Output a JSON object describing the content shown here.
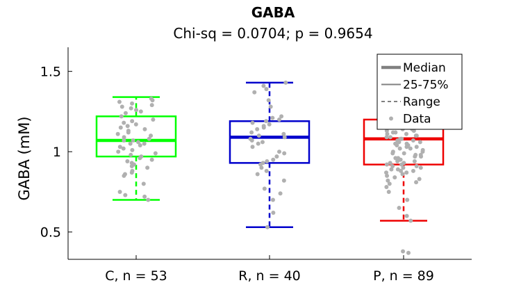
{
  "chart_data": {
    "type": "box",
    "title": "GABA",
    "subtitle": "Chi-sq = 0.0704; p = 0.9654",
    "xlabel": "",
    "ylabel": "GABA (mM)",
    "ylim": [
      0.33,
      1.65
    ],
    "yticks": [
      0.5,
      1,
      1.5
    ],
    "ytick_labels": [
      "0.5",
      "1",
      "1.5"
    ],
    "categories": [
      "C, n = 53",
      "R, n = 40",
      "P, n = 89"
    ],
    "groups": [
      {
        "label": "C, n = 53",
        "color": "#00ff00",
        "min": 0.7,
        "q1": 0.97,
        "median": 1.07,
        "q3": 1.22,
        "max": 1.34,
        "points": [
          1.33,
          1.32,
          1.31,
          1.3,
          1.29,
          1.28,
          1.27,
          1.26,
          1.25,
          1.24,
          1.22,
          1.2,
          1.19,
          1.18,
          1.17,
          1.16,
          1.15,
          1.14,
          1.13,
          1.12,
          1.11,
          1.1,
          1.09,
          1.08,
          1.07,
          1.07,
          1.06,
          1.05,
          1.05,
          1.04,
          1.03,
          1.02,
          1.01,
          1.0,
          0.99,
          0.98,
          0.97,
          0.96,
          0.95,
          0.94,
          0.93,
          0.92,
          0.91,
          0.9,
          0.88,
          0.87,
          0.86,
          0.85,
          0.8,
          0.75,
          0.73,
          0.72,
          0.7
        ]
      },
      {
        "label": "R, n = 40",
        "color": "#0000cc",
        "min": 0.53,
        "q1": 0.93,
        "median": 1.09,
        "q3": 1.19,
        "max": 1.43,
        "points": [
          1.43,
          1.41,
          1.39,
          1.37,
          1.32,
          1.28,
          1.22,
          1.21,
          1.2,
          1.19,
          1.18,
          1.17,
          1.16,
          1.15,
          1.14,
          1.12,
          1.11,
          1.1,
          1.09,
          1.08,
          1.07,
          1.06,
          1.05,
          1.03,
          1.0,
          0.99,
          0.97,
          0.95,
          0.94,
          0.93,
          0.92,
          0.9,
          0.88,
          0.86,
          0.82,
          0.77,
          0.74,
          0.7,
          0.62,
          0.53
        ]
      },
      {
        "label": "P, n = 89",
        "color": "#ee0000",
        "min": 0.57,
        "q1": 0.92,
        "median": 1.08,
        "q3": 1.2,
        "max": 1.58,
        "points": [
          1.58,
          1.55,
          1.52,
          1.48,
          1.45,
          1.42,
          1.38,
          1.35,
          1.3,
          1.25,
          1.22,
          1.2,
          1.19,
          1.18,
          1.17,
          1.16,
          1.15,
          1.15,
          1.14,
          1.14,
          1.13,
          1.13,
          1.12,
          1.12,
          1.11,
          1.11,
          1.1,
          1.1,
          1.09,
          1.09,
          1.08,
          1.08,
          1.08,
          1.07,
          1.07,
          1.06,
          1.06,
          1.05,
          1.05,
          1.04,
          1.04,
          1.03,
          1.03,
          1.02,
          1.02,
          1.01,
          1.0,
          1.0,
          0.99,
          0.99,
          0.98,
          0.98,
          0.97,
          0.97,
          0.96,
          0.96,
          0.95,
          0.95,
          0.94,
          0.94,
          0.93,
          0.93,
          0.92,
          0.92,
          0.91,
          0.91,
          0.9,
          0.9,
          0.89,
          0.89,
          0.88,
          0.88,
          0.87,
          0.87,
          0.86,
          0.85,
          0.84,
          0.83,
          0.82,
          0.81,
          0.8,
          0.78,
          0.75,
          0.7,
          0.65,
          0.6,
          0.57,
          0.38,
          0.37
        ]
      }
    ],
    "legend": {
      "placement": "top-right",
      "entries": [
        {
          "label": "Median",
          "style": "thick-line"
        },
        {
          "label": "25-75%",
          "style": "thin-line"
        },
        {
          "label": "Range",
          "style": "dashed-line"
        },
        {
          "label": "Data",
          "style": "dot"
        }
      ]
    },
    "colors": {
      "data_points": "#b0b0b0",
      "legend_line": "#808080",
      "axis": "#000000"
    },
    "grid": false
  }
}
